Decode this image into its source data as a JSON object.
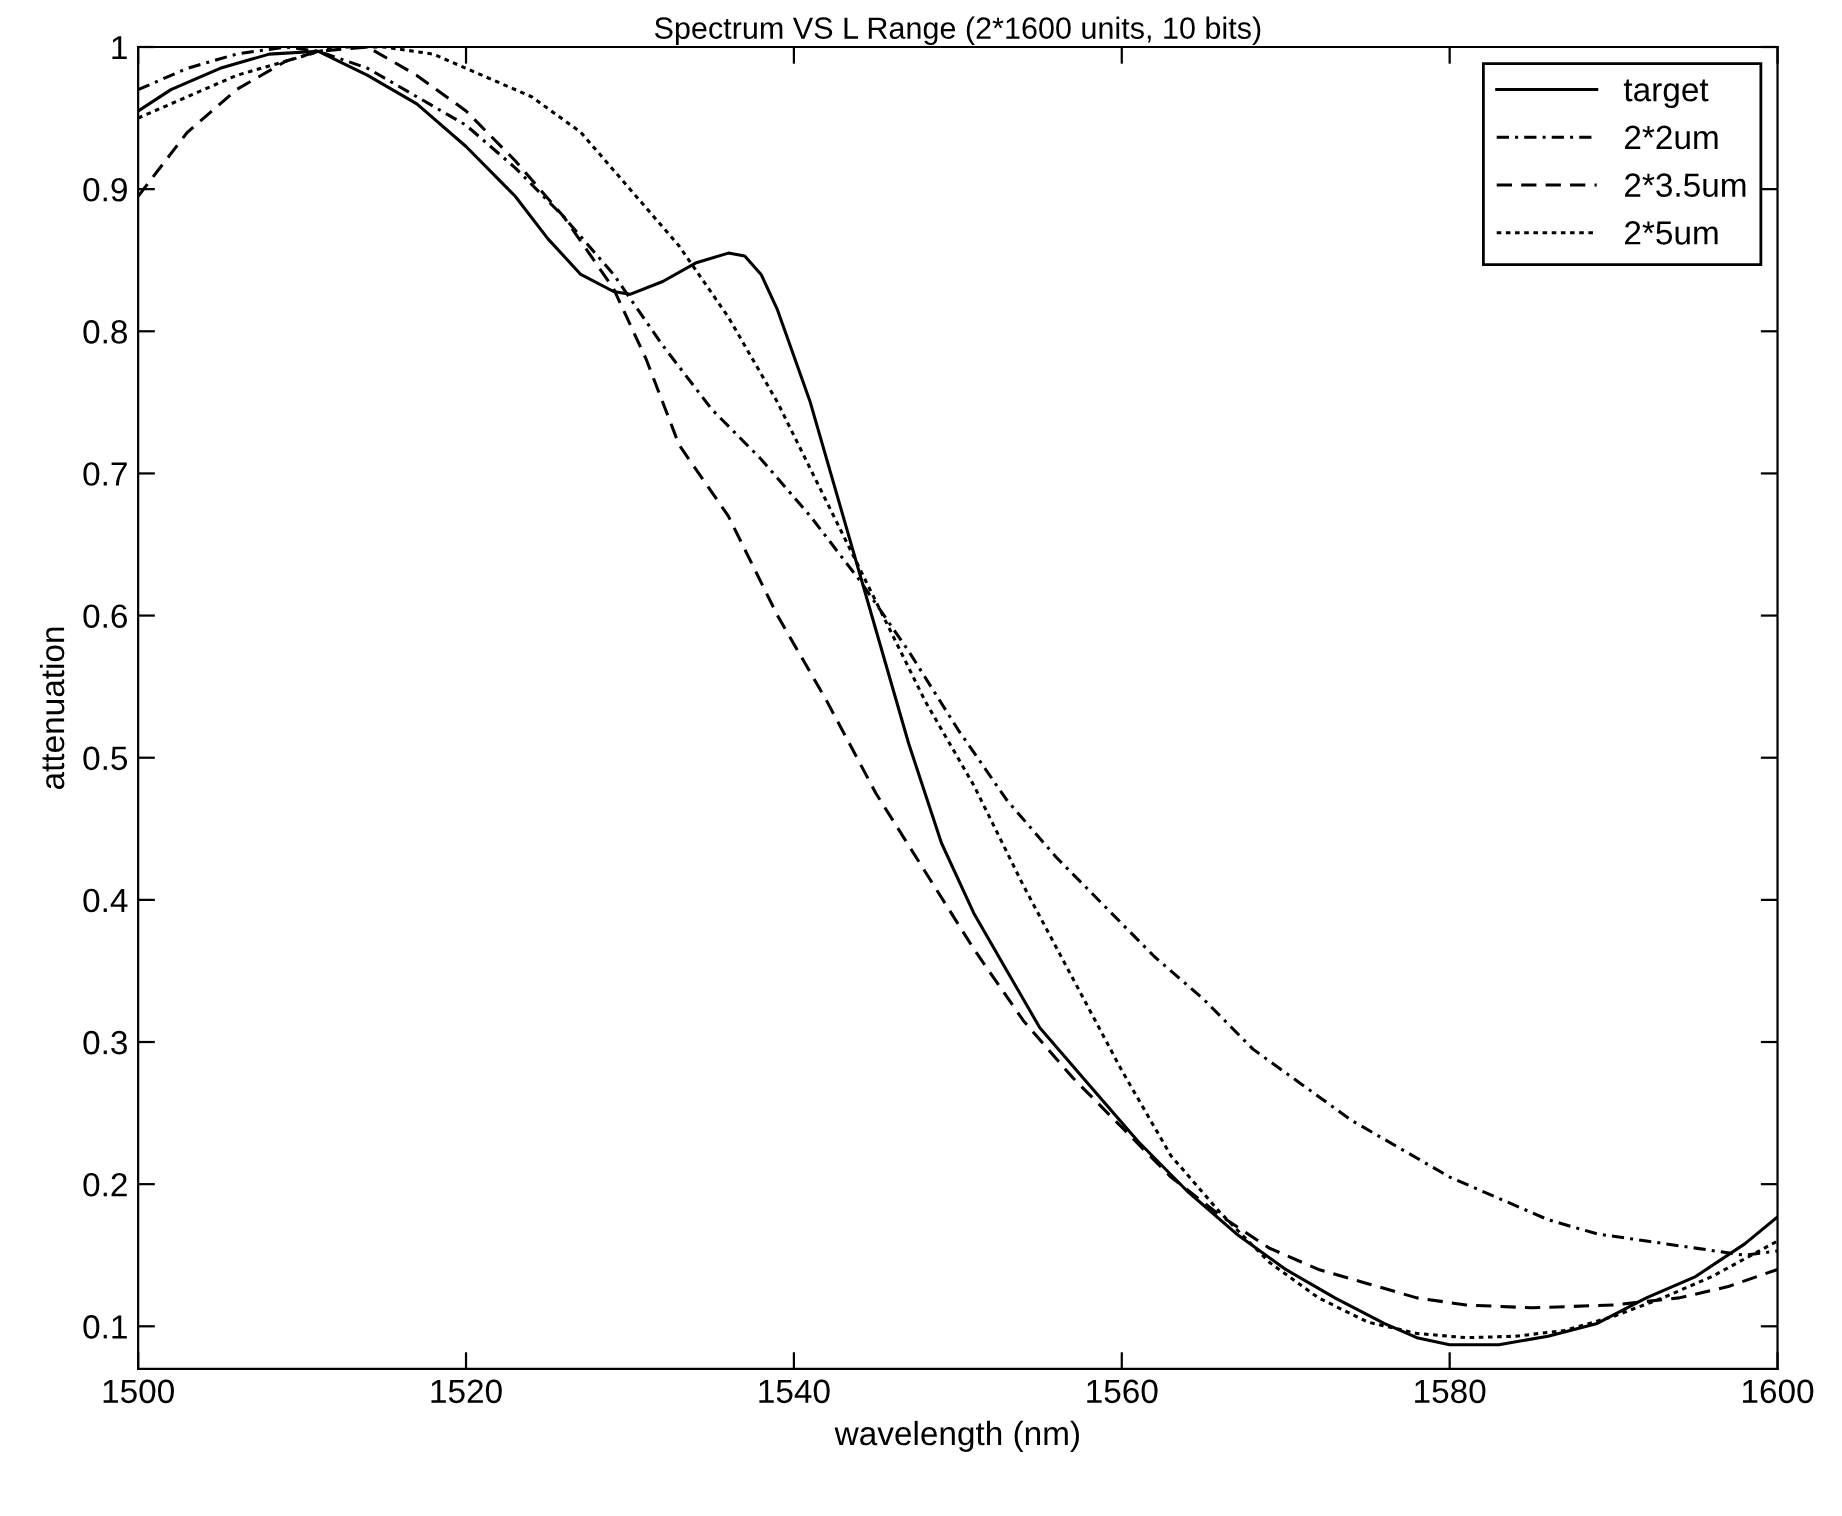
{
  "chart_data": {
    "type": "line",
    "title": "Spectrum VS L Range (2*1600 units, 10 bits)",
    "xlabel": "wavelength (nm)",
    "ylabel": "attenuation",
    "xlim": [
      1500,
      1600
    ],
    "xticks": [
      1500,
      1520,
      1540,
      1560,
      1580,
      1600
    ],
    "ylim": [
      0.07,
      1
    ],
    "yticks": [
      0.1,
      0.2,
      0.3,
      0.4,
      0.5,
      0.6,
      0.7,
      0.8,
      0.9,
      1
    ],
    "grid": false,
    "legend": "top right",
    "marker": "none",
    "series": [
      {
        "name": "target",
        "color": "#000000",
        "line_style": "solid",
        "x": [
          1500,
          1502,
          1505,
          1508,
          1511,
          1514,
          1517,
          1520,
          1523,
          1525,
          1527,
          1529,
          1530,
          1532,
          1534,
          1536,
          1537,
          1538,
          1539,
          1541,
          1543,
          1545,
          1547,
          1549,
          1551,
          1553,
          1555,
          1558,
          1561,
          1564,
          1567,
          1570,
          1573,
          1576,
          1578,
          1580,
          1583,
          1586,
          1589,
          1592,
          1595,
          1598,
          1600
        ],
        "values": [
          0.955,
          0.97,
          0.985,
          0.995,
          0.997,
          0.98,
          0.96,
          0.93,
          0.895,
          0.865,
          0.84,
          0.828,
          0.826,
          0.835,
          0.848,
          0.855,
          0.853,
          0.84,
          0.815,
          0.75,
          0.67,
          0.59,
          0.51,
          0.44,
          0.39,
          0.35,
          0.31,
          0.27,
          0.23,
          0.195,
          0.165,
          0.14,
          0.12,
          0.102,
          0.092,
          0.087,
          0.087,
          0.093,
          0.102,
          0.12,
          0.135,
          0.158,
          0.177
        ]
      },
      {
        "name": "2*2um",
        "color": "#000000",
        "line_style": "dashdot",
        "x": [
          1500,
          1503,
          1506,
          1509,
          1511,
          1514,
          1517,
          1520,
          1523,
          1526,
          1529,
          1532,
          1535,
          1538,
          1541,
          1544,
          1547,
          1550,
          1553,
          1556,
          1559,
          1562,
          1565,
          1568,
          1571,
          1574,
          1577,
          1580,
          1583,
          1586,
          1589,
          1592,
          1595,
          1598,
          1600
        ],
        "values": [
          0.97,
          0.985,
          0.995,
          1.0,
          0.997,
          0.985,
          0.965,
          0.945,
          0.915,
          0.88,
          0.84,
          0.79,
          0.745,
          0.71,
          0.67,
          0.625,
          0.575,
          0.52,
          0.47,
          0.43,
          0.395,
          0.36,
          0.33,
          0.295,
          0.27,
          0.245,
          0.225,
          0.205,
          0.19,
          0.175,
          0.165,
          0.16,
          0.155,
          0.15,
          0.153
        ]
      },
      {
        "name": "2*3.5um",
        "color": "#000000",
        "line_style": "dashed",
        "x": [
          1500,
          1503,
          1506,
          1509,
          1511,
          1514,
          1517,
          1520,
          1523,
          1526,
          1529,
          1531,
          1533,
          1536,
          1539,
          1542,
          1545,
          1548,
          1551,
          1554,
          1557,
          1560,
          1563,
          1566,
          1569,
          1572,
          1575,
          1578,
          1581,
          1585,
          1590,
          1594,
          1597,
          1600
        ],
        "values": [
          0.895,
          0.94,
          0.97,
          0.99,
          0.997,
          1.0,
          0.98,
          0.955,
          0.92,
          0.88,
          0.83,
          0.78,
          0.72,
          0.67,
          0.6,
          0.54,
          0.475,
          0.42,
          0.365,
          0.315,
          0.275,
          0.24,
          0.205,
          0.178,
          0.155,
          0.14,
          0.13,
          0.12,
          0.115,
          0.113,
          0.115,
          0.12,
          0.128,
          0.14
        ]
      },
      {
        "name": "2*5um",
        "color": "#000000",
        "line_style": "dotted",
        "x": [
          1500,
          1503,
          1506,
          1509,
          1512,
          1515,
          1518,
          1521,
          1524,
          1527,
          1530,
          1533,
          1536,
          1539,
          1542,
          1545,
          1548,
          1551,
          1554,
          1557,
          1560,
          1563,
          1566,
          1569,
          1572,
          1575,
          1578,
          1581,
          1584,
          1587,
          1590,
          1593,
          1596,
          1600
        ],
        "values": [
          0.95,
          0.965,
          0.98,
          0.99,
          1.0,
          1.0,
          0.995,
          0.98,
          0.965,
          0.94,
          0.9,
          0.86,
          0.81,
          0.75,
          0.68,
          0.61,
          0.54,
          0.48,
          0.41,
          0.345,
          0.28,
          0.22,
          0.18,
          0.145,
          0.12,
          0.103,
          0.095,
          0.092,
          0.093,
          0.097,
          0.107,
          0.12,
          0.135,
          0.16
        ]
      }
    ]
  }
}
